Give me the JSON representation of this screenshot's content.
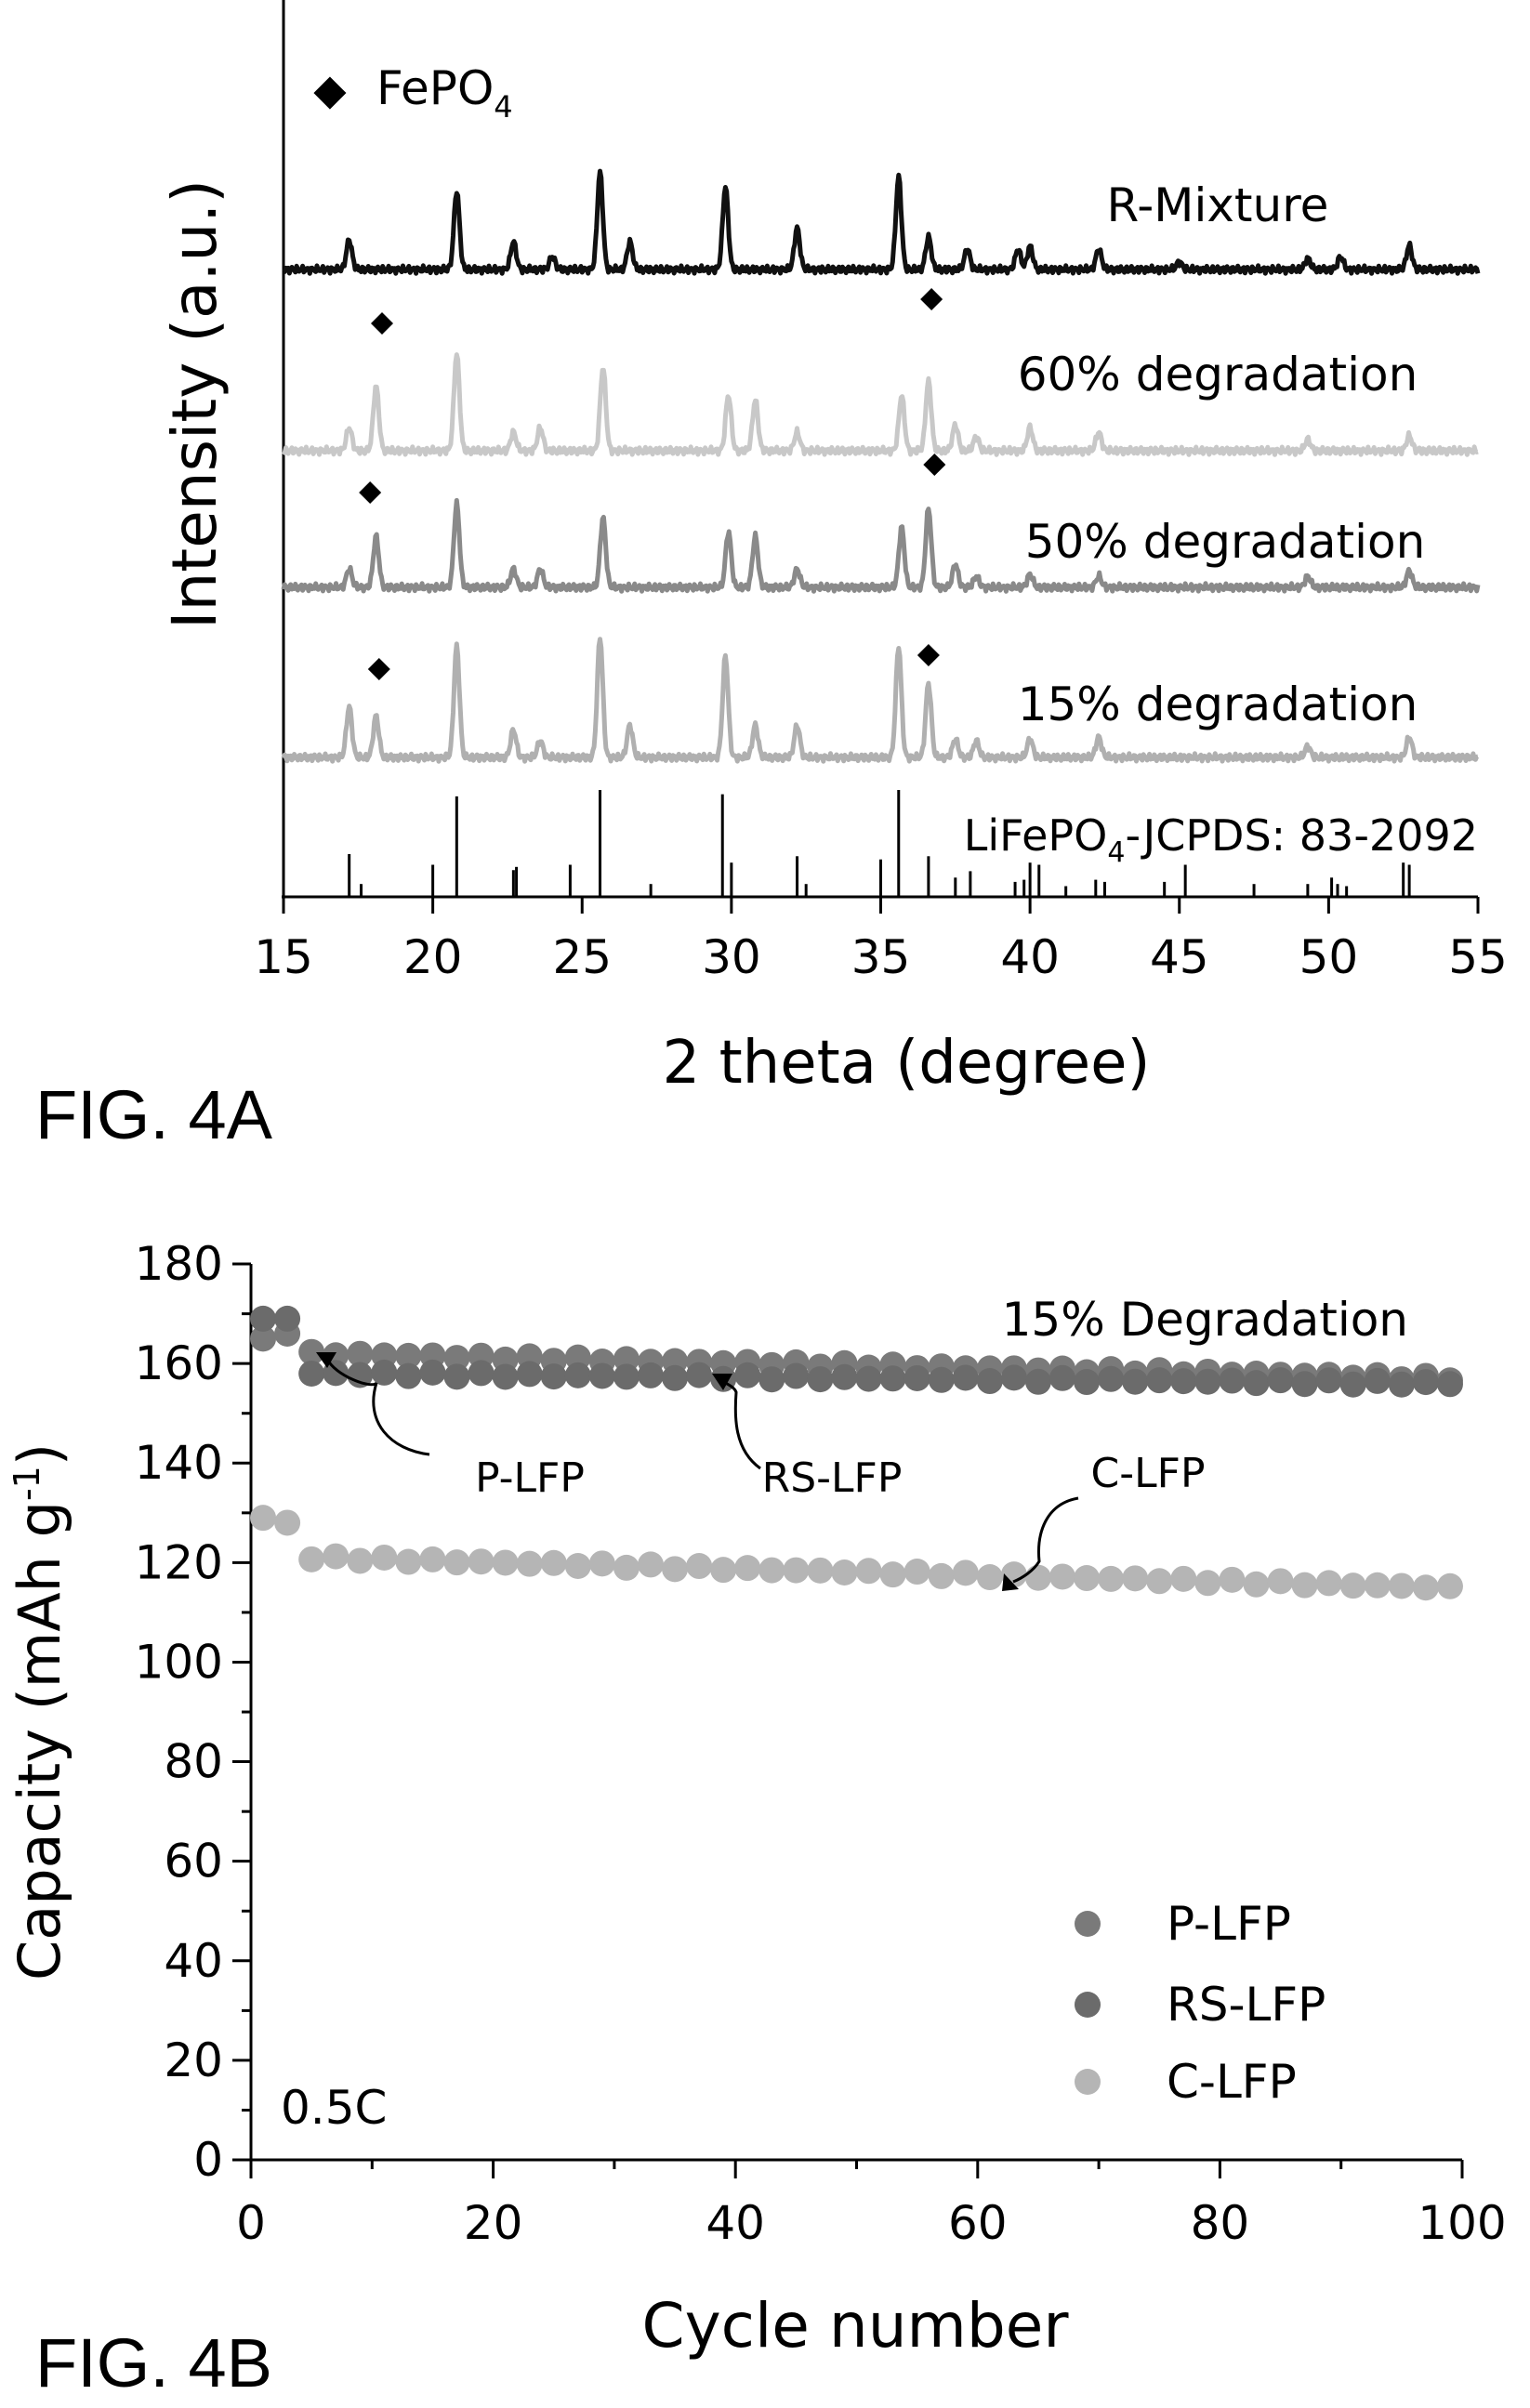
{
  "figure_a": {
    "label": "FIG. 4A",
    "marker_legend": {
      "symbol": "◆",
      "name": "FePO",
      "subscript": "4"
    },
    "chart_data": {
      "type": "line",
      "title": "",
      "xlabel": "2 theta (degree)",
      "ylabel": "Intensity (a.u.)",
      "xlim": [
        15,
        55
      ],
      "xticks": [
        "15",
        "20",
        "25",
        "30",
        "35",
        "40",
        "45",
        "50",
        "55"
      ],
      "yticks_shown": false,
      "grid": false,
      "series": [
        {
          "name": "R-Mixture",
          "color": "#111111",
          "peaks": [
            {
              "x": 17.2,
              "h": 32
            },
            {
              "x": 20.8,
              "h": 85
            },
            {
              "x": 22.7,
              "h": 30
            },
            {
              "x": 24.0,
              "h": 14
            },
            {
              "x": 25.6,
              "h": 105
            },
            {
              "x": 26.6,
              "h": 30
            },
            {
              "x": 29.8,
              "h": 90
            },
            {
              "x": 32.2,
              "h": 45
            },
            {
              "x": 35.6,
              "h": 100
            },
            {
              "x": 36.6,
              "h": 35
            },
            {
              "x": 37.9,
              "h": 22
            },
            {
              "x": 39.6,
              "h": 22
            },
            {
              "x": 40.0,
              "h": 25
            },
            {
              "x": 42.3,
              "h": 22
            },
            {
              "x": 45.0,
              "h": 8
            },
            {
              "x": 49.3,
              "h": 12
            },
            {
              "x": 50.4,
              "h": 14
            },
            {
              "x": 52.7,
              "h": 26
            }
          ]
        },
        {
          "name": "60% degradation",
          "color": "#c8c8c8",
          "peaks": [
            {
              "x": 17.2,
              "h": 25
            },
            {
              "x": 18.1,
              "h": 70
            },
            {
              "x": 20.8,
              "h": 105
            },
            {
              "x": 22.7,
              "h": 20
            },
            {
              "x": 23.6,
              "h": 25
            },
            {
              "x": 25.7,
              "h": 90
            },
            {
              "x": 29.9,
              "h": 60
            },
            {
              "x": 30.8,
              "h": 55
            },
            {
              "x": 32.2,
              "h": 20
            },
            {
              "x": 35.7,
              "h": 60
            },
            {
              "x": 36.6,
              "h": 75
            },
            {
              "x": 37.5,
              "h": 28
            },
            {
              "x": 38.2,
              "h": 15
            },
            {
              "x": 40.0,
              "h": 25
            },
            {
              "x": 42.3,
              "h": 20
            },
            {
              "x": 49.3,
              "h": 12
            },
            {
              "x": 52.7,
              "h": 16
            }
          ]
        },
        {
          "name": "50% degradation",
          "color": "#8a8a8a",
          "peaks": [
            {
              "x": 17.2,
              "h": 20
            },
            {
              "x": 18.1,
              "h": 55
            },
            {
              "x": 20.8,
              "h": 90
            },
            {
              "x": 22.7,
              "h": 20
            },
            {
              "x": 23.6,
              "h": 20
            },
            {
              "x": 25.7,
              "h": 75
            },
            {
              "x": 29.9,
              "h": 60
            },
            {
              "x": 30.8,
              "h": 55
            },
            {
              "x": 32.2,
              "h": 20
            },
            {
              "x": 35.7,
              "h": 65
            },
            {
              "x": 36.6,
              "h": 85
            },
            {
              "x": 37.5,
              "h": 25
            },
            {
              "x": 38.2,
              "h": 12
            },
            {
              "x": 40.0,
              "h": 14
            },
            {
              "x": 42.3,
              "h": 12
            },
            {
              "x": 49.3,
              "h": 12
            },
            {
              "x": 52.7,
              "h": 18
            }
          ]
        },
        {
          "name": "15% degradation",
          "color": "#b0b0b0",
          "peaks": [
            {
              "x": 17.2,
              "h": 55
            },
            {
              "x": 18.1,
              "h": 45
            },
            {
              "x": 20.8,
              "h": 120
            },
            {
              "x": 22.7,
              "h": 30
            },
            {
              "x": 23.6,
              "h": 18
            },
            {
              "x": 25.6,
              "h": 130
            },
            {
              "x": 26.6,
              "h": 35
            },
            {
              "x": 29.8,
              "h": 110
            },
            {
              "x": 30.8,
              "h": 35
            },
            {
              "x": 32.2,
              "h": 35
            },
            {
              "x": 35.6,
              "h": 120
            },
            {
              "x": 36.6,
              "h": 80
            },
            {
              "x": 37.5,
              "h": 20
            },
            {
              "x": 38.2,
              "h": 18
            },
            {
              "x": 40.0,
              "h": 20
            },
            {
              "x": 42.3,
              "h": 22
            },
            {
              "x": 49.3,
              "h": 12
            },
            {
              "x": 52.7,
              "h": 22
            }
          ]
        }
      ],
      "reference": {
        "name": "LiFePO",
        "subscript": "4",
        "suffix": "-JCPDS: 83-2092",
        "lines": [
          {
            "x": 17.2,
            "h": 0.4
          },
          {
            "x": 17.6,
            "h": 0.12
          },
          {
            "x": 20.0,
            "h": 0.3
          },
          {
            "x": 20.8,
            "h": 0.94
          },
          {
            "x": 22.7,
            "h": 0.25
          },
          {
            "x": 22.8,
            "h": 0.28
          },
          {
            "x": 24.6,
            "h": 0.3
          },
          {
            "x": 25.6,
            "h": 1.0
          },
          {
            "x": 27.3,
            "h": 0.12
          },
          {
            "x": 29.7,
            "h": 0.96
          },
          {
            "x": 30.0,
            "h": 0.32
          },
          {
            "x": 32.2,
            "h": 0.38
          },
          {
            "x": 32.5,
            "h": 0.12
          },
          {
            "x": 35.0,
            "h": 0.35
          },
          {
            "x": 35.6,
            "h": 1.0
          },
          {
            "x": 36.6,
            "h": 0.38
          },
          {
            "x": 37.5,
            "h": 0.18
          },
          {
            "x": 38.0,
            "h": 0.24
          },
          {
            "x": 39.5,
            "h": 0.14
          },
          {
            "x": 39.8,
            "h": 0.16
          },
          {
            "x": 40.0,
            "h": 0.32
          },
          {
            "x": 40.3,
            "h": 0.3
          },
          {
            "x": 41.2,
            "h": 0.1
          },
          {
            "x": 42.2,
            "h": 0.16
          },
          {
            "x": 42.5,
            "h": 0.14
          },
          {
            "x": 44.5,
            "h": 0.14
          },
          {
            "x": 45.2,
            "h": 0.3
          },
          {
            "x": 47.5,
            "h": 0.12
          },
          {
            "x": 49.3,
            "h": 0.12
          },
          {
            "x": 50.1,
            "h": 0.18
          },
          {
            "x": 50.3,
            "h": 0.12
          },
          {
            "x": 50.6,
            "h": 0.1
          },
          {
            "x": 52.5,
            "h": 0.32
          },
          {
            "x": 52.7,
            "h": 0.3
          }
        ]
      },
      "fepo4_markers": [
        {
          "series": "60% degradation",
          "x": 18.3
        },
        {
          "series": "60% degradation",
          "x": 36.7
        },
        {
          "series": "50% degradation",
          "x": 17.9
        },
        {
          "series": "50% degradation",
          "x": 36.8
        },
        {
          "series": "15% degradation",
          "x": 18.2
        },
        {
          "series": "15% degradation",
          "x": 36.6
        }
      ]
    }
  },
  "figure_b": {
    "label": "FIG. 4B",
    "condition_label": "15% Degradation",
    "rate_label": "0.5C",
    "chart_data": {
      "type": "scatter",
      "title": "",
      "xlabel": "Cycle number",
      "ylabel_main": "Capacity (mAh g",
      "ylabel_sup": "-1",
      "ylabel_close": ")",
      "xlim": [
        0,
        100
      ],
      "ylim": [
        0,
        180
      ],
      "xticks": [
        "0",
        "20",
        "40",
        "60",
        "80",
        "100"
      ],
      "yticks": [
        "0",
        "20",
        "40",
        "60",
        "80",
        "100",
        "120",
        "140",
        "160",
        "180"
      ],
      "grid": false,
      "legend_position": "bottom-right",
      "series": [
        {
          "name": "P-LFP",
          "color": "#7a7a7a",
          "initial": [
            [
              1,
              165
            ],
            [
              3,
              166
            ]
          ],
          "y_start": 162,
          "y_end": 157
        },
        {
          "name": "RS-LFP",
          "color": "#6b6b6b",
          "initial": [
            [
              1,
              169
            ],
            [
              3,
              169
            ]
          ],
          "y_start": 158,
          "y_end": 156
        },
        {
          "name": "C-LFP",
          "color": "#b5b5b5",
          "initial": [
            [
              1,
              129
            ],
            [
              3,
              128
            ]
          ],
          "y_start": 121,
          "y_end": 115
        }
      ],
      "annotations": [
        {
          "text": "P-LFP",
          "points_to": [
            6,
            163
          ]
        },
        {
          "text": "RS-LFP",
          "points_to": [
            38,
            158
          ]
        },
        {
          "text": "C-LFP",
          "points_to": [
            61,
            117
          ]
        }
      ]
    }
  }
}
